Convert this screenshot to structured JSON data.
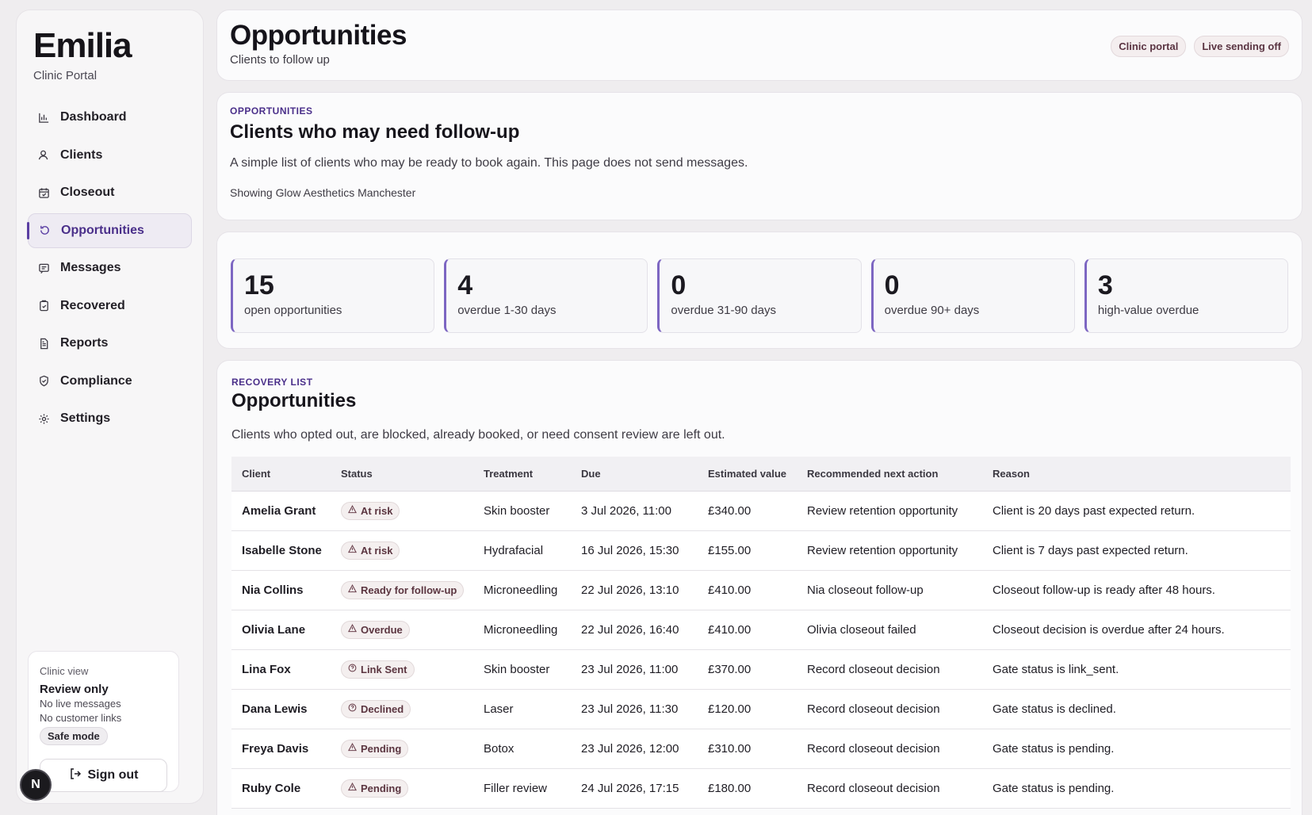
{
  "sidebar": {
    "brand": "Emilia",
    "subtitle": "Clinic Portal",
    "items": [
      {
        "label": "Dashboard",
        "icon": "chart-icon"
      },
      {
        "label": "Clients",
        "icon": "user-icon"
      },
      {
        "label": "Closeout",
        "icon": "calendar-check-icon"
      },
      {
        "label": "Opportunities",
        "icon": "refresh-icon",
        "active": true
      },
      {
        "label": "Messages",
        "icon": "message-icon"
      },
      {
        "label": "Recovered",
        "icon": "clipboard-check-icon"
      },
      {
        "label": "Reports",
        "icon": "document-icon"
      },
      {
        "label": "Compliance",
        "icon": "shield-icon"
      },
      {
        "label": "Settings",
        "icon": "gear-icon"
      }
    ],
    "clinic_card": {
      "label": "Clinic view",
      "title": "Review only",
      "line1": "No live messages",
      "line2": "No customer links",
      "badge": "Safe mode",
      "signout": "Sign out"
    },
    "avatar": "N"
  },
  "header": {
    "title": "Opportunities",
    "subtitle": "Clients to follow up",
    "badges": [
      "Clinic portal",
      "Live sending off"
    ]
  },
  "intro": {
    "eyebrow": "OPPORTUNITIES",
    "title": "Clients who may need follow-up",
    "description": "A simple list of clients who may be ready to book again. This page does not send messages.",
    "note": "Showing Glow Aesthetics Manchester"
  },
  "stats": [
    {
      "value": "15",
      "label": "open opportunities"
    },
    {
      "value": "4",
      "label": "overdue 1-30 days"
    },
    {
      "value": "0",
      "label": "overdue 31-90 days"
    },
    {
      "value": "0",
      "label": "overdue 90+ days"
    },
    {
      "value": "3",
      "label": "high-value overdue"
    }
  ],
  "list": {
    "eyebrow": "RECOVERY LIST",
    "title": "Opportunities",
    "description": "Clients who opted out, are blocked, already booked, or need consent review are left out.",
    "columns": [
      "Client",
      "Status",
      "Treatment",
      "Due",
      "Estimated value",
      "Recommended next action",
      "Reason"
    ],
    "rows": [
      {
        "client": "Amelia Grant",
        "status": "At risk",
        "status_icon": "warning-icon",
        "treatment": "Skin booster",
        "due": "3 Jul 2026, 11:00",
        "value": "£340.00",
        "action": "Review retention opportunity",
        "reason": "Client is 20 days past expected return."
      },
      {
        "client": "Isabelle Stone",
        "status": "At risk",
        "status_icon": "warning-icon",
        "treatment": "Hydrafacial",
        "due": "16 Jul 2026, 15:30",
        "value": "£155.00",
        "action": "Review retention opportunity",
        "reason": "Client is 7 days past expected return."
      },
      {
        "client": "Nia Collins",
        "status": "Ready for follow-up",
        "status_icon": "warning-icon",
        "treatment": "Microneedling",
        "due": "22 Jul 2026, 13:10",
        "value": "£410.00",
        "action": "Nia closeout follow-up",
        "reason": "Closeout follow-up is ready after 48 hours."
      },
      {
        "client": "Olivia Lane",
        "status": "Overdue",
        "status_icon": "warning-icon",
        "treatment": "Microneedling",
        "due": "22 Jul 2026, 16:40",
        "value": "£410.00",
        "action": "Olivia closeout failed",
        "reason": "Closeout decision is overdue after 24 hours."
      },
      {
        "client": "Lina Fox",
        "status": "Link Sent",
        "status_icon": "help-icon",
        "treatment": "Skin booster",
        "due": "23 Jul 2026, 11:00",
        "value": "£370.00",
        "action": "Record closeout decision",
        "reason": "Gate status is link_sent."
      },
      {
        "client": "Dana Lewis",
        "status": "Declined",
        "status_icon": "help-icon",
        "treatment": "Laser",
        "due": "23 Jul 2026, 11:30",
        "value": "£120.00",
        "action": "Record closeout decision",
        "reason": "Gate status is declined."
      },
      {
        "client": "Freya Davis",
        "status": "Pending",
        "status_icon": "warning-icon",
        "treatment": "Botox",
        "due": "23 Jul 2026, 12:00",
        "value": "£310.00",
        "action": "Record closeout decision",
        "reason": "Gate status is pending."
      },
      {
        "client": "Ruby Cole",
        "status": "Pending",
        "status_icon": "warning-icon",
        "treatment": "Filler review",
        "due": "24 Jul 2026, 17:15",
        "value": "£180.00",
        "action": "Record closeout decision",
        "reason": "Gate status is pending."
      }
    ]
  }
}
